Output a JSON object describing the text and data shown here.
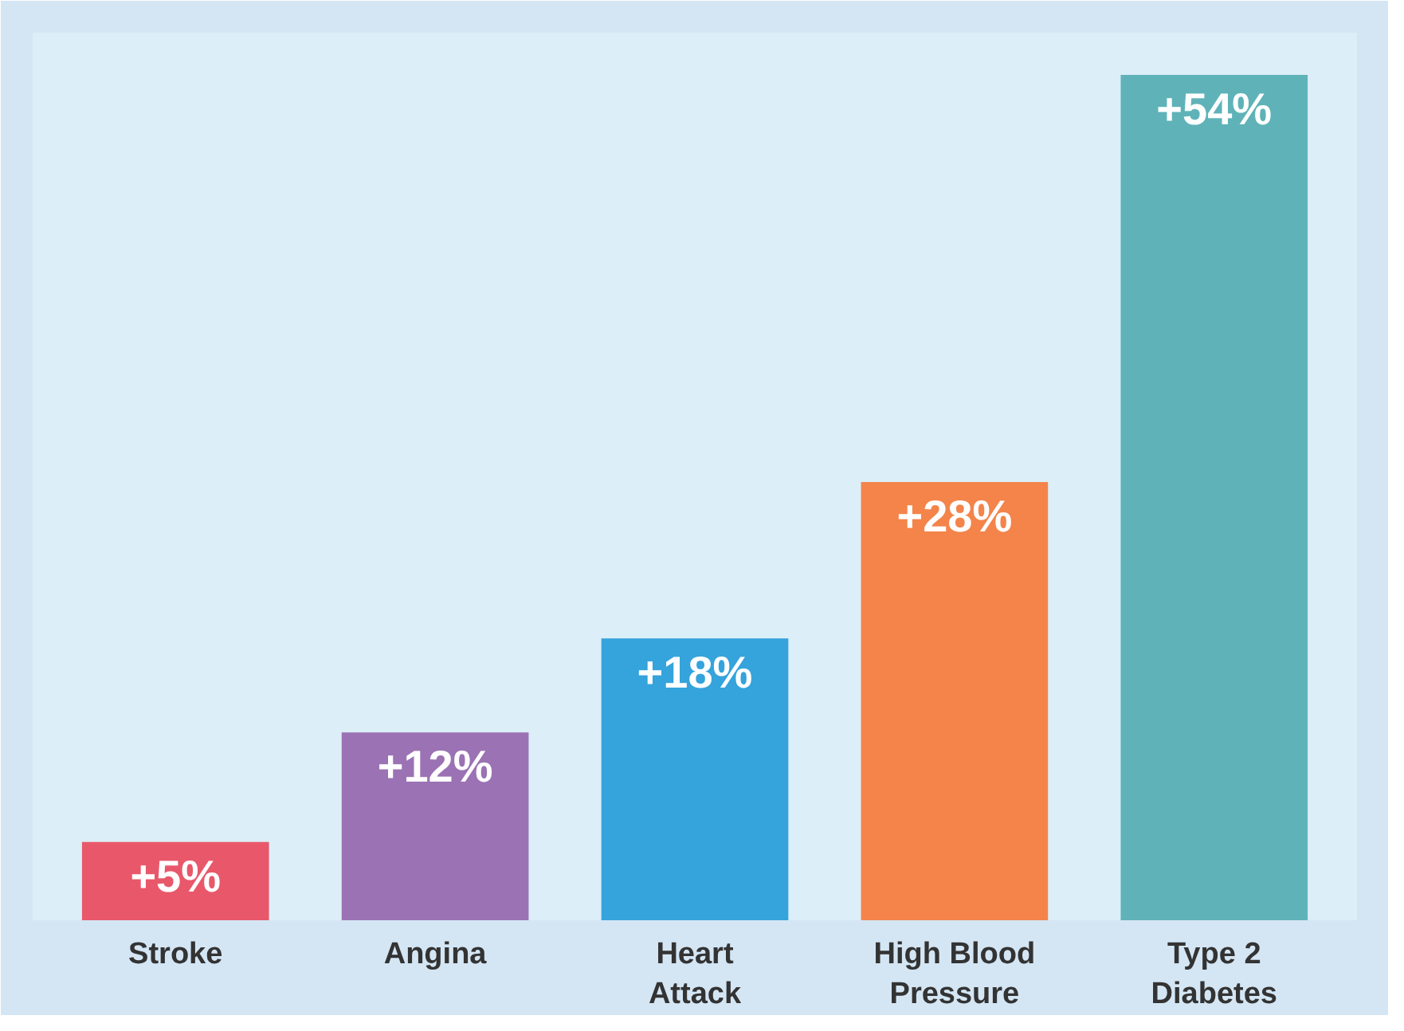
{
  "chart_data": {
    "type": "bar",
    "categories": [
      "Stroke",
      "Angina",
      "Heart Attack",
      "High Blood Pressure",
      "Type 2 Diabetes"
    ],
    "values": [
      5,
      12,
      18,
      28,
      54
    ],
    "colors": [
      "#e8586a",
      "#9b72b4",
      "#35a3dc",
      "#f4844a",
      "#5fb3b8"
    ],
    "value_labels": [
      "+5%",
      "+12%",
      "+18%",
      "+28%",
      "+54%"
    ]
  }
}
